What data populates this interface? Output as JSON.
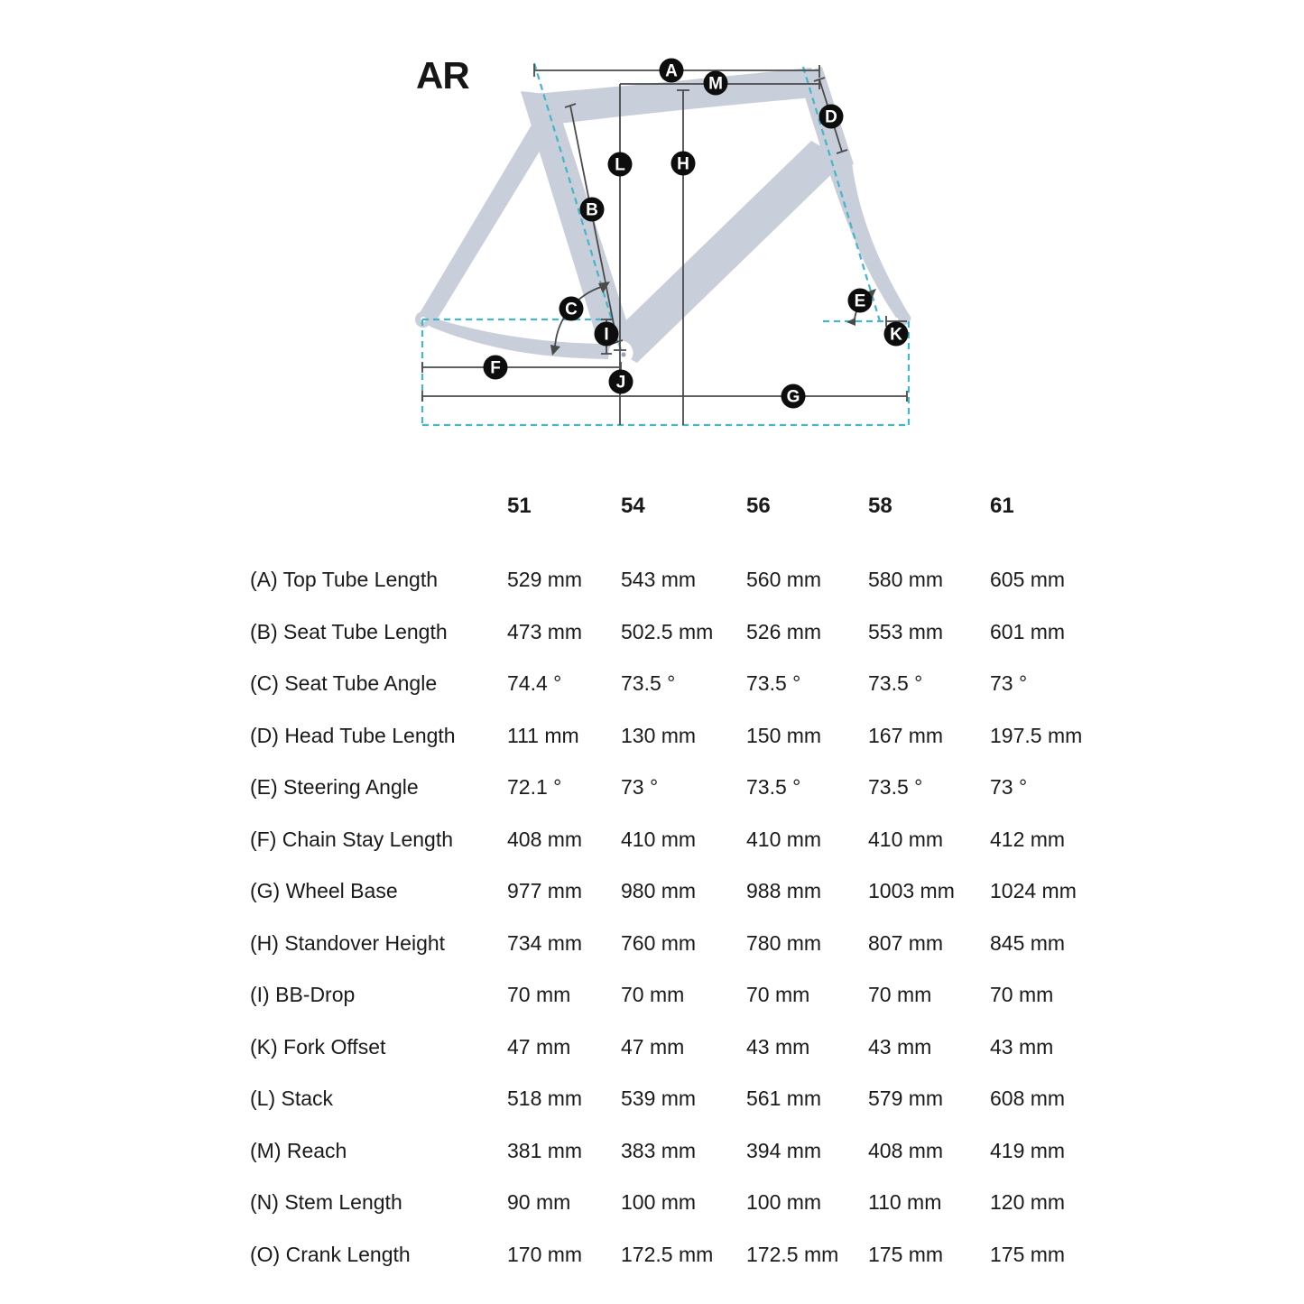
{
  "title": "AR",
  "diagram": {
    "badges": [
      "A",
      "M",
      "D",
      "L",
      "H",
      "B",
      "C",
      "E",
      "I",
      "K",
      "F",
      "J",
      "G"
    ],
    "frame_color": "#c9cedb",
    "dash_color": "#44b6c9",
    "line_color": "#4a4a4a",
    "badge_color": "#0d0d0d",
    "badge_text_color": "#ffffff"
  },
  "table": {
    "sizes": [
      "51",
      "54",
      "56",
      "58",
      "61"
    ],
    "rows": [
      {
        "label": "(A) Top Tube Length",
        "values": [
          "529 mm",
          "543 mm",
          "560 mm",
          "580 mm",
          "605 mm"
        ]
      },
      {
        "label": "(B) Seat Tube Length",
        "values": [
          "473 mm",
          "502.5 mm",
          "526 mm",
          "553 mm",
          "601 mm"
        ]
      },
      {
        "label": "(C) Seat Tube Angle",
        "values": [
          "74.4 °",
          "73.5 °",
          "73.5 °",
          "73.5 °",
          "73 °"
        ]
      },
      {
        "label": "(D) Head Tube Length",
        "values": [
          "111 mm",
          "130 mm",
          "150 mm",
          "167 mm",
          "197.5 mm"
        ]
      },
      {
        "label": "(E) Steering Angle",
        "values": [
          "72.1 °",
          "73 °",
          "73.5 °",
          "73.5 °",
          "73 °"
        ]
      },
      {
        "label": "(F) Chain Stay Length",
        "values": [
          "408 mm",
          "410 mm",
          "410 mm",
          "410 mm",
          "412 mm"
        ]
      },
      {
        "label": "(G) Wheel Base",
        "values": [
          "977 mm",
          "980 mm",
          "988 mm",
          "1003 mm",
          "1024 mm"
        ]
      },
      {
        "label": "(H) Standover Height",
        "values": [
          "734 mm",
          "760 mm",
          "780 mm",
          "807 mm",
          "845 mm"
        ]
      },
      {
        "label": "(I) BB-Drop",
        "values": [
          "70 mm",
          "70 mm",
          "70 mm",
          "70 mm",
          "70 mm"
        ]
      },
      {
        "label": "(K) Fork Offset",
        "values": [
          "47 mm",
          "47 mm",
          "43 mm",
          "43 mm",
          "43 mm"
        ]
      },
      {
        "label": "(L) Stack",
        "values": [
          "518 mm",
          "539 mm",
          "561 mm",
          "579 mm",
          "608 mm"
        ]
      },
      {
        "label": "(M) Reach",
        "values": [
          "381 mm",
          "383 mm",
          "394 mm",
          "408 mm",
          "419 mm"
        ]
      },
      {
        "label": "(N) Stem Length",
        "values": [
          "90 mm",
          "100 mm",
          "100 mm",
          "110 mm",
          "120 mm"
        ]
      },
      {
        "label": "(O) Crank Length",
        "values": [
          "170 mm",
          "172.5 mm",
          "172.5 mm",
          "175 mm",
          "175 mm"
        ]
      }
    ]
  }
}
